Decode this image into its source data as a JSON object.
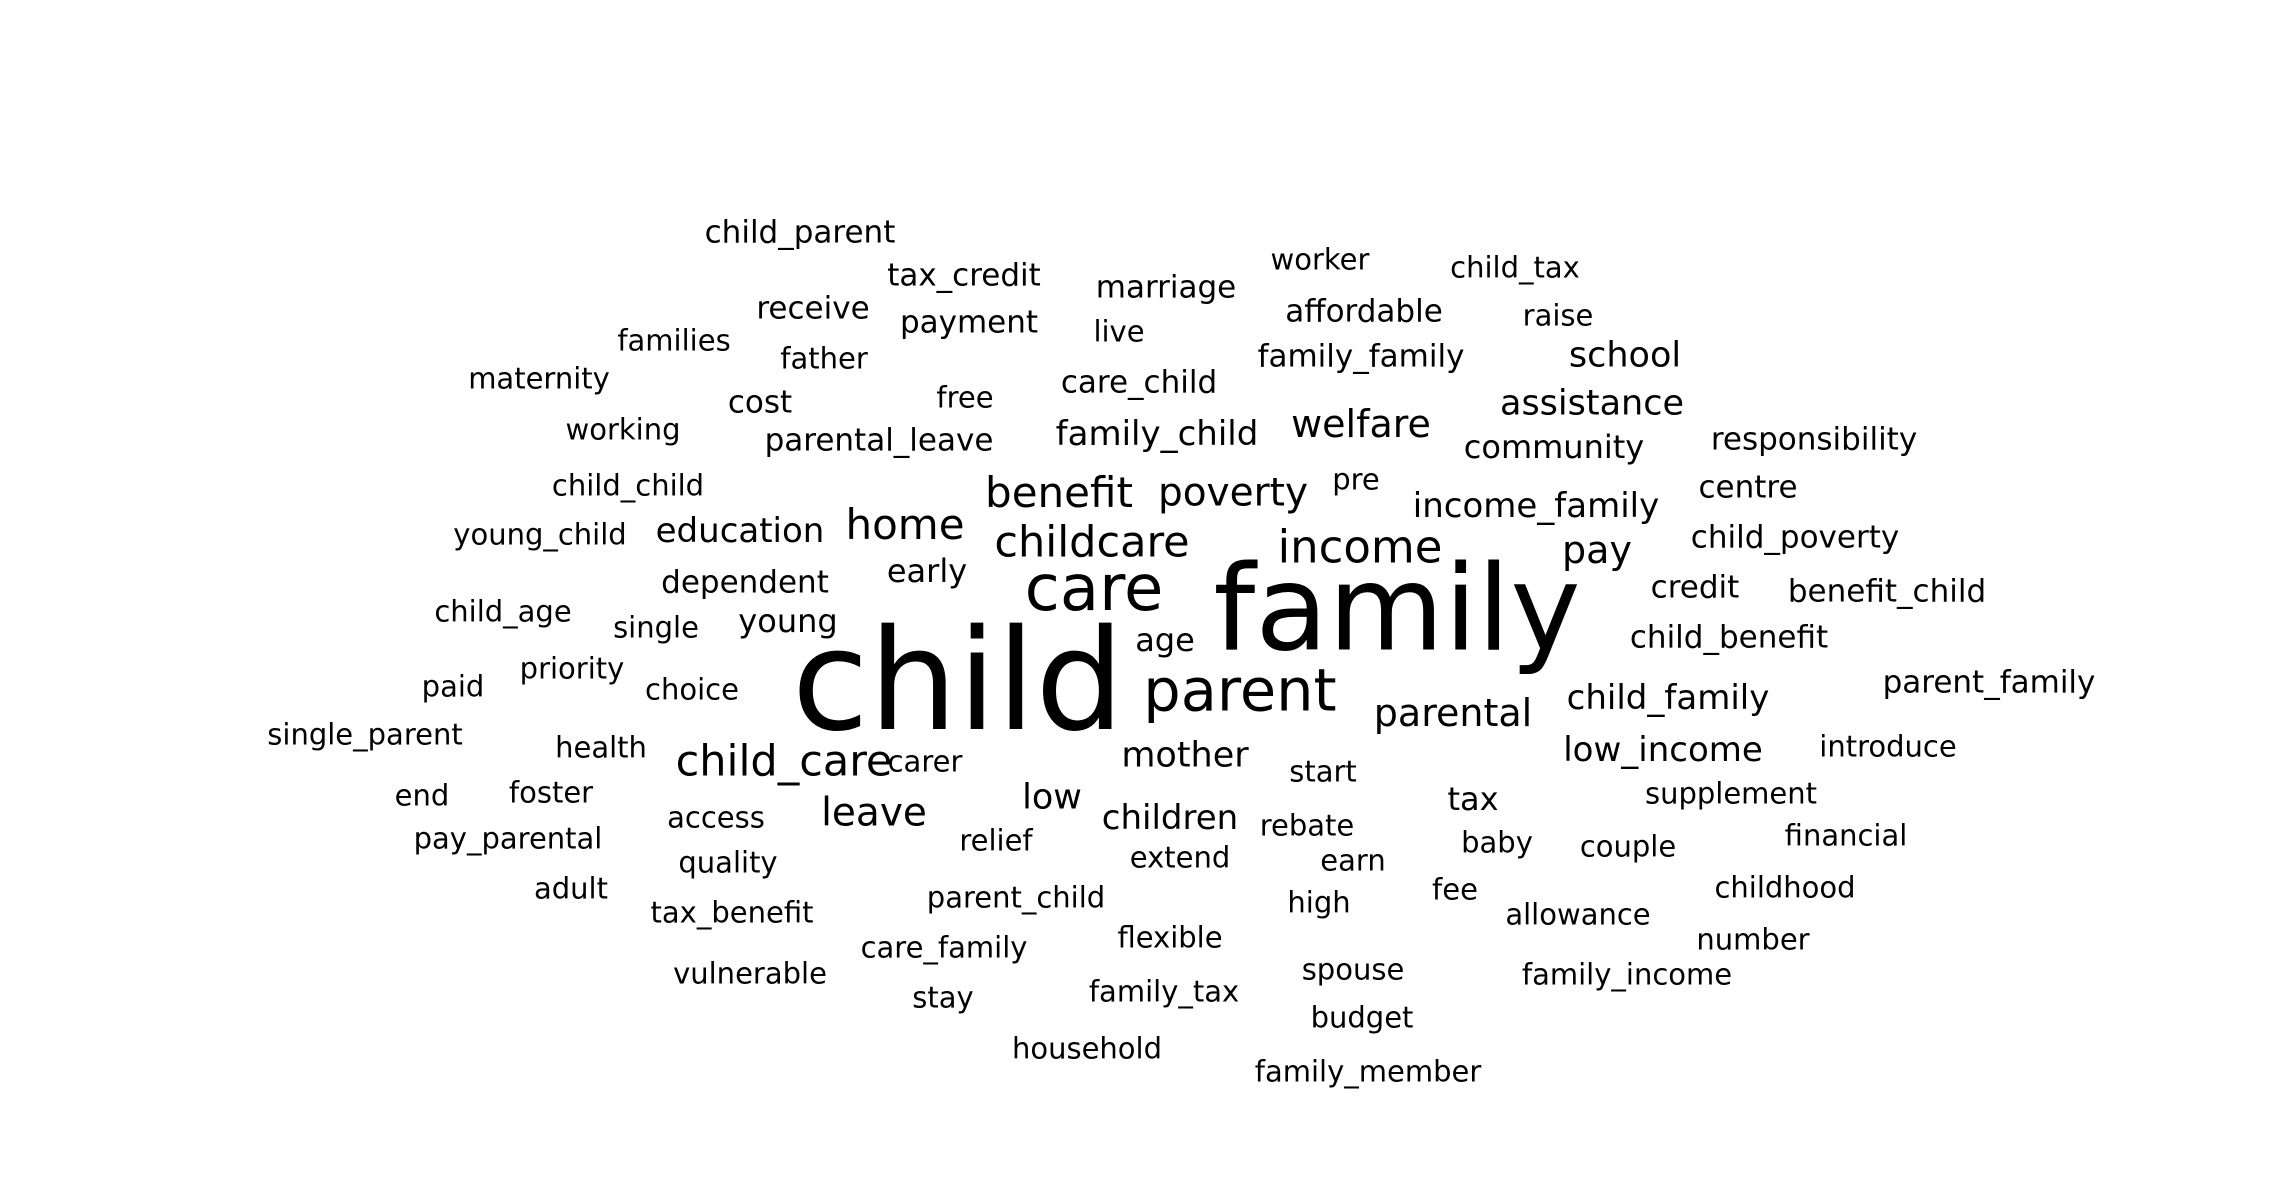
{
  "cloud": {
    "color": "#000000",
    "words": [
      {
        "text": "family",
        "size": 0.85
      },
      {
        "text": "child",
        "size": 1.0
      },
      {
        "text": "care",
        "size": 0.46
      },
      {
        "text": "parent",
        "size": 0.42
      },
      {
        "text": "income",
        "size": 0.32
      },
      {
        "text": "childcare",
        "size": 0.31
      },
      {
        "text": "child_care",
        "size": 0.31
      },
      {
        "text": "benefit",
        "size": 0.3
      },
      {
        "text": "home",
        "size": 0.3
      },
      {
        "text": "poverty",
        "size": 0.28
      },
      {
        "text": "leave",
        "size": 0.28
      },
      {
        "text": "parental",
        "size": 0.27
      },
      {
        "text": "pay",
        "size": 0.27
      },
      {
        "text": "welfare",
        "size": 0.27
      },
      {
        "text": "mother",
        "size": 0.25
      },
      {
        "text": "low",
        "size": 0.25
      },
      {
        "text": "child_family",
        "size": 0.24
      },
      {
        "text": "school",
        "size": 0.25
      },
      {
        "text": "assistance",
        "size": 0.25
      },
      {
        "text": "income_family",
        "size": 0.24
      },
      {
        "text": "family_child",
        "size": 0.24
      },
      {
        "text": "education",
        "size": 0.24
      },
      {
        "text": "low_income",
        "size": 0.24
      },
      {
        "text": "children",
        "size": 0.24
      },
      {
        "text": "early",
        "size": 0.23
      },
      {
        "text": "young",
        "size": 0.23
      },
      {
        "text": "age",
        "size": 0.23
      },
      {
        "text": "community",
        "size": 0.23
      },
      {
        "text": "tax",
        "size": 0.23
      },
      {
        "text": "parental_leave",
        "size": 0.22
      },
      {
        "text": "care_child",
        "size": 0.22
      },
      {
        "text": "payment",
        "size": 0.22
      },
      {
        "text": "receive",
        "size": 0.22
      },
      {
        "text": "cost",
        "size": 0.22
      },
      {
        "text": "dependent",
        "size": 0.22
      },
      {
        "text": "parent_family",
        "size": 0.22
      },
      {
        "text": "child_benefit",
        "size": 0.22
      },
      {
        "text": "credit",
        "size": 0.22
      },
      {
        "text": "benefit_child",
        "size": 0.22
      },
      {
        "text": "child_poverty",
        "size": 0.22
      },
      {
        "text": "responsibility",
        "size": 0.22
      },
      {
        "text": "centre",
        "size": 0.22
      },
      {
        "text": "affordable",
        "size": 0.22
      },
      {
        "text": "family_family",
        "size": 0.22
      },
      {
        "text": "marriage",
        "size": 0.22
      },
      {
        "text": "tax_credit",
        "size": 0.22
      },
      {
        "text": "child_parent",
        "size": 0.22
      },
      {
        "text": "worker",
        "size": 0.21
      },
      {
        "text": "child_tax",
        "size": 0.21
      },
      {
        "text": "raise",
        "size": 0.21
      },
      {
        "text": "live",
        "size": 0.21
      },
      {
        "text": "father",
        "size": 0.21
      },
      {
        "text": "families",
        "size": 0.21
      },
      {
        "text": "maternity",
        "size": 0.21
      },
      {
        "text": "free",
        "size": 0.21
      },
      {
        "text": "working",
        "size": 0.21
      },
      {
        "text": "child_child",
        "size": 0.21
      },
      {
        "text": "young_child",
        "size": 0.21
      },
      {
        "text": "pre",
        "size": 0.21
      },
      {
        "text": "child_age",
        "size": 0.21
      },
      {
        "text": "single",
        "size": 0.21
      },
      {
        "text": "priority",
        "size": 0.21
      },
      {
        "text": "choice",
        "size": 0.21
      },
      {
        "text": "paid",
        "size": 0.21
      },
      {
        "text": "single_parent",
        "size": 0.21
      },
      {
        "text": "health",
        "size": 0.21
      },
      {
        "text": "carer",
        "size": 0.21
      },
      {
        "text": "start",
        "size": 0.21
      },
      {
        "text": "introduce",
        "size": 0.21
      },
      {
        "text": "supplement",
        "size": 0.21
      },
      {
        "text": "end",
        "size": 0.21
      },
      {
        "text": "foster",
        "size": 0.21
      },
      {
        "text": "access",
        "size": 0.21
      },
      {
        "text": "relief",
        "size": 0.21
      },
      {
        "text": "rebate",
        "size": 0.21
      },
      {
        "text": "baby",
        "size": 0.21
      },
      {
        "text": "couple",
        "size": 0.21
      },
      {
        "text": "financial",
        "size": 0.21
      },
      {
        "text": "pay_parental",
        "size": 0.21
      },
      {
        "text": "quality",
        "size": 0.21
      },
      {
        "text": "extend",
        "size": 0.21
      },
      {
        "text": "earn",
        "size": 0.21
      },
      {
        "text": "adult",
        "size": 0.21
      },
      {
        "text": "parent_child",
        "size": 0.21
      },
      {
        "text": "fee",
        "size": 0.21
      },
      {
        "text": "childhood",
        "size": 0.21
      },
      {
        "text": "high",
        "size": 0.21
      },
      {
        "text": "tax_benefit",
        "size": 0.21
      },
      {
        "text": "allowance",
        "size": 0.21
      },
      {
        "text": "flexible",
        "size": 0.21
      },
      {
        "text": "care_family",
        "size": 0.21
      },
      {
        "text": "number",
        "size": 0.21
      },
      {
        "text": "vulnerable",
        "size": 0.21
      },
      {
        "text": "spouse",
        "size": 0.21
      },
      {
        "text": "family_income",
        "size": 0.21
      },
      {
        "text": "family_tax",
        "size": 0.21
      },
      {
        "text": "stay",
        "size": 0.21
      },
      {
        "text": "budget",
        "size": 0.21
      },
      {
        "text": "household",
        "size": 0.21
      },
      {
        "text": "family_member",
        "size": 0.21
      }
    ]
  }
}
